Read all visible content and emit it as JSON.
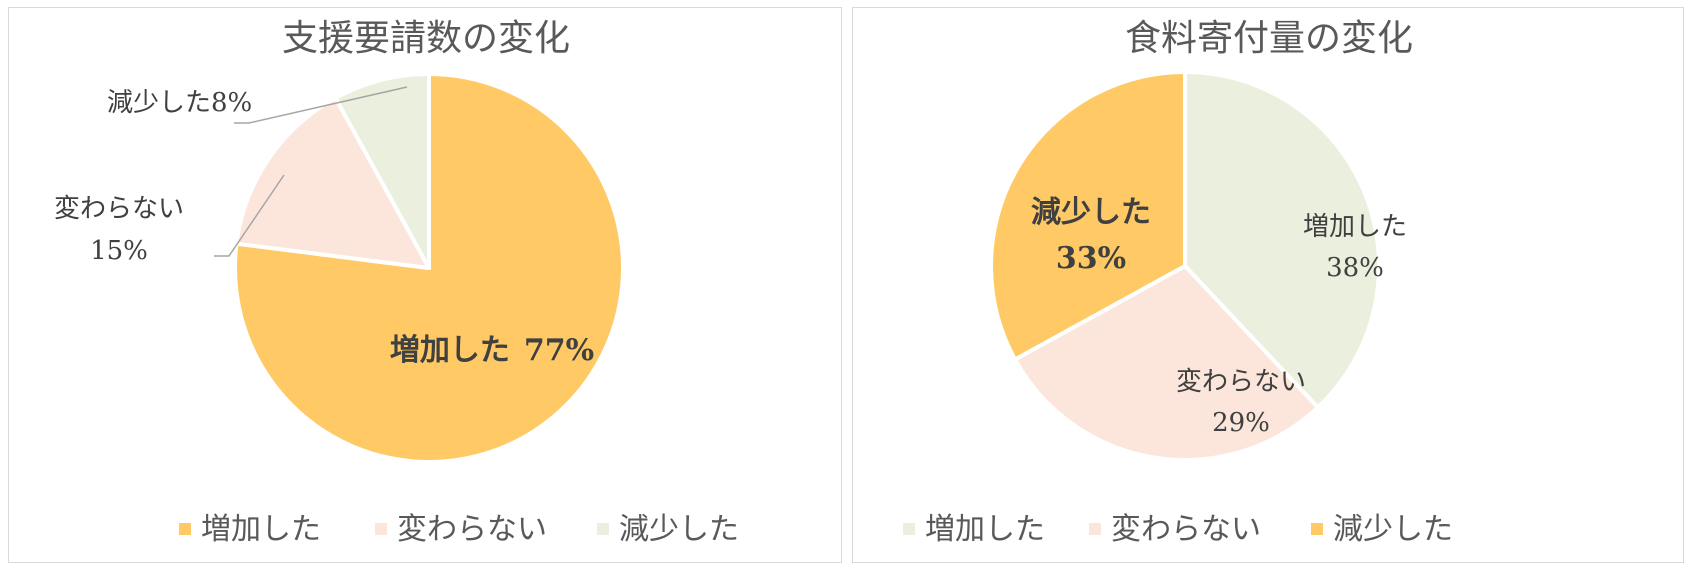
{
  "chart_data": [
    {
      "type": "pie",
      "title": "支援要請数の変化",
      "categories": [
        "増加した",
        "変わらない",
        "減少した"
      ],
      "values": [
        77,
        15,
        8
      ],
      "colors": [
        "#ffca66",
        "#fce6dc",
        "#ebefde"
      ],
      "data_labels": [
        {
          "name": "増加した",
          "value": "77%"
        },
        {
          "name": "変わらない",
          "value": "15%"
        },
        {
          "name": "減少した",
          "value": "8%"
        }
      ],
      "legend": "bottom"
    },
    {
      "type": "pie",
      "title": "食料寄付量の変化",
      "categories": [
        "増加した",
        "変わらない",
        "減少した"
      ],
      "values": [
        38,
        29,
        33
      ],
      "colors": [
        "#ebefde",
        "#fce6dc",
        "#ffca66"
      ],
      "data_labels": [
        {
          "name": "増加した",
          "value": "38%"
        },
        {
          "name": "変わらない",
          "value": "29%"
        },
        {
          "name": "減少した",
          "value": "33%"
        }
      ],
      "legend": "bottom"
    }
  ]
}
